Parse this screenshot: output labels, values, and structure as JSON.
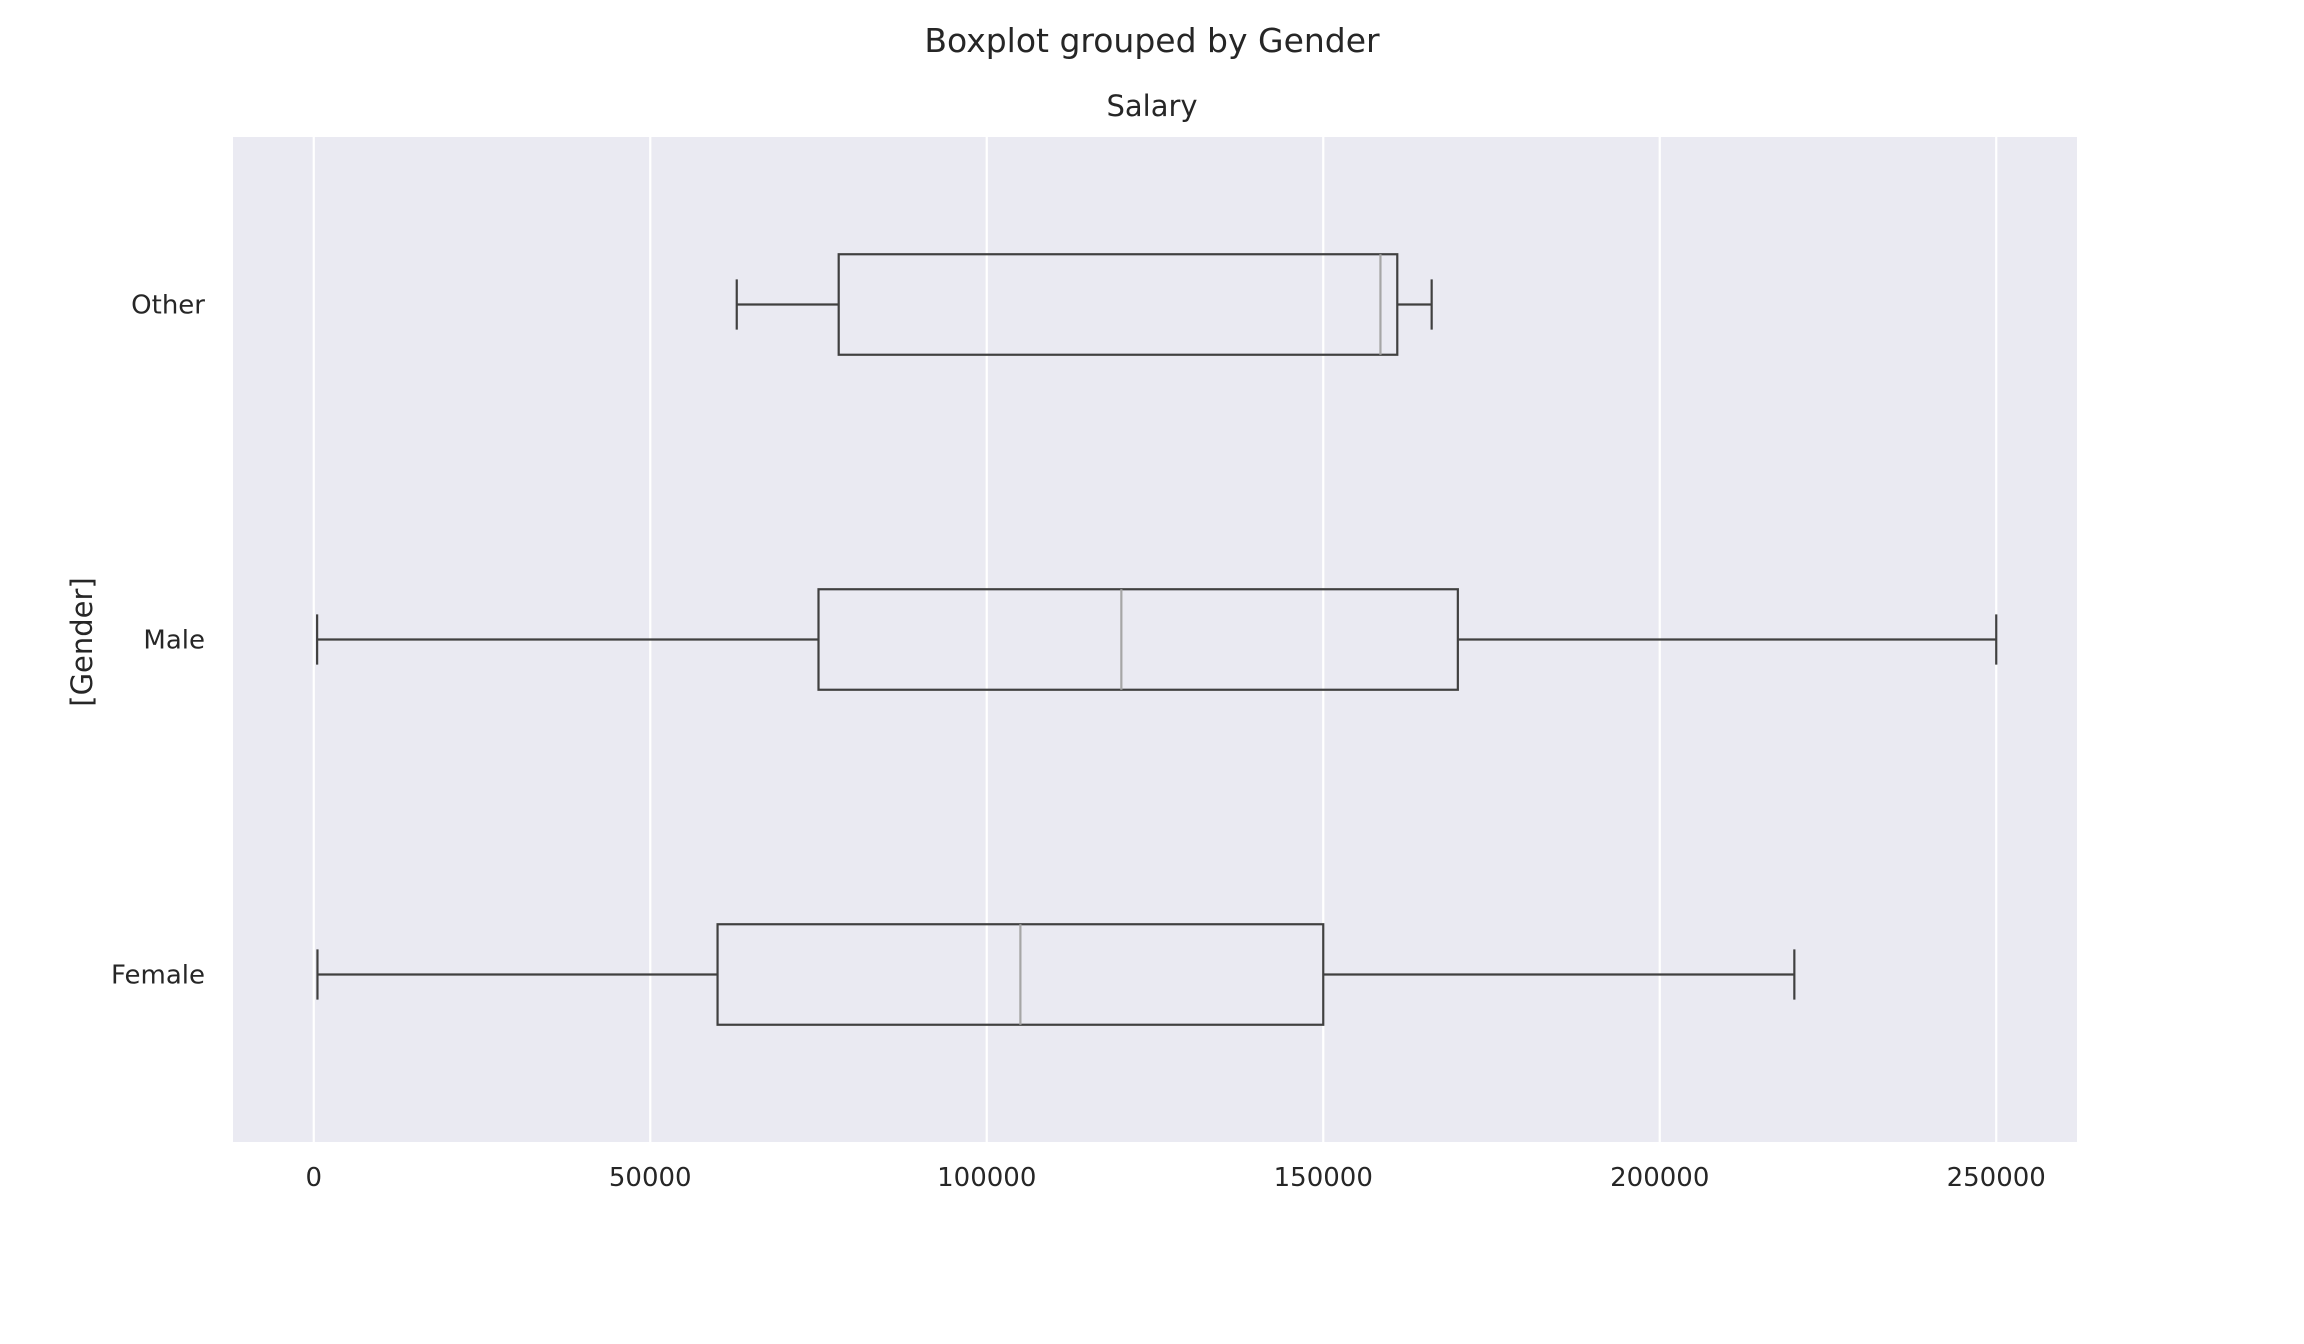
{
  "chart_data": {
    "type": "boxplot",
    "orientation": "horizontal",
    "title": "Boxplot grouped by Gender",
    "subtitle": "Salary",
    "ylabel": "[Gender]",
    "xlabel": "",
    "xlim": [
      -12000,
      262000
    ],
    "xticks": [
      0,
      50000,
      100000,
      150000,
      200000,
      250000
    ],
    "xtick_labels": [
      "0",
      "50000",
      "100000",
      "150000",
      "200000",
      "250000"
    ],
    "grid": "vertical",
    "categories": [
      "Female",
      "Male",
      "Other"
    ],
    "boxes": [
      {
        "category": "Female",
        "whisker_low": 550,
        "q1": 60000,
        "median": 105000,
        "q3": 150000,
        "whisker_high": 220000
      },
      {
        "category": "Male",
        "whisker_low": 500,
        "q1": 75000,
        "median": 120000,
        "q3": 170000,
        "whisker_high": 250000
      },
      {
        "category": "Other",
        "whisker_low": 62852,
        "q1": 78000,
        "median": 158500,
        "q3": 161000,
        "whisker_high": 166109
      }
    ],
    "colors": {
      "plot_background": "#eaeaf2",
      "grid": "#ffffff",
      "box": "#404040",
      "median": "#a6a6a6",
      "text": "#262626"
    }
  }
}
